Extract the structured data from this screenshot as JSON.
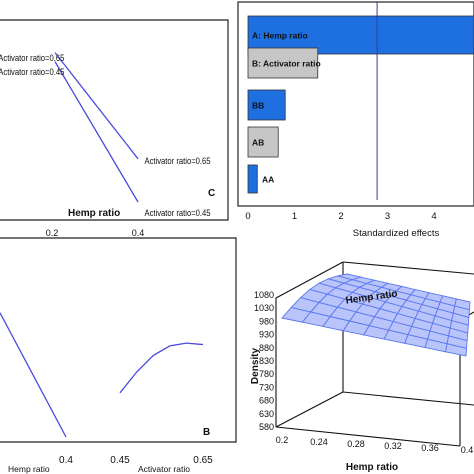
{
  "chart_data": [
    {
      "panel_label": "C",
      "type": "line",
      "xlabel": "Hemp ratio",
      "x_ticks": [
        "0.2",
        "0.4"
      ],
      "series": [
        {
          "name": "Activator ratio=0.65",
          "end_label": "Activator ratio=0.65",
          "x": [
            0.0,
            0.4
          ],
          "y": [
            0.93,
            0.34
          ]
        },
        {
          "name": "Activator ratio=0.45",
          "end_label": "Activator ratio=0.45",
          "x": [
            0.0,
            0.4
          ],
          "y": [
            0.88,
            0.1
          ]
        }
      ]
    },
    {
      "type": "bar",
      "orientation": "horizontal",
      "categories": [
        "A: Hemp ratio",
        "B: Activator ratio",
        "BB",
        "AB",
        "AA"
      ],
      "values": [
        5.1,
        1.5,
        0.8,
        0.65,
        0.2
      ],
      "bar_colors": [
        "#1e6fe0",
        "#c6c6c6",
        "#1e6fe0",
        "#c6c6c6",
        "#1e6fe0"
      ],
      "xlabel": "Standardized effects",
      "x_ticks": [
        "0",
        "1",
        "2",
        "3",
        "4"
      ],
      "xlim": [
        0,
        4.9
      ],
      "reference_line": 2.776
    },
    {
      "panel_label": "B",
      "type": "line",
      "x_tick_labels": [
        "0.4",
        "0.45",
        "0.65"
      ],
      "xlabels": [
        "Hemp ratio",
        "Activator ratio"
      ],
      "series": [
        {
          "x": [
            0.0,
            0.4
          ],
          "y": [
            0.9,
            0.0
          ]
        },
        {
          "x": [
            0.45,
            0.49,
            0.53,
            0.57,
            0.61,
            0.65
          ],
          "y": [
            0.32,
            0.47,
            0.59,
            0.66,
            0.68,
            0.67
          ]
        }
      ]
    },
    {
      "type": "surface",
      "xlabel": "Hemp ratio",
      "zlabel": "Density",
      "x_ticks": [
        "0.2",
        "0.24",
        "0.28",
        "0.32",
        "0.36",
        "0.4"
      ],
      "z_ticks": [
        "580",
        "630",
        "680",
        "730",
        "780",
        "830",
        "880",
        "930",
        "980",
        "1030",
        "1080"
      ],
      "color": "#5a78f0"
    }
  ]
}
